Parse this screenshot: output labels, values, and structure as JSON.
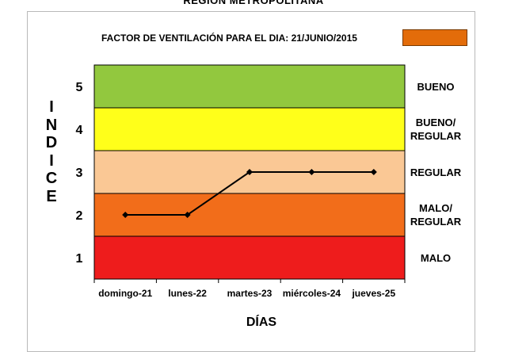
{
  "header": {
    "region_title": "REGION METROPOLITANA",
    "factor_label": "FACTOR DE VENTILACIÓN PARA EL DIA:  21/JUNIO/2015",
    "factor_color": "#E36C0A"
  },
  "chart_data": {
    "type": "line",
    "categories": [
      "domingo-21",
      "lunes-22",
      "martes-23",
      "miércoles-24",
      "jueves-25"
    ],
    "values": [
      2,
      2,
      3,
      3,
      3
    ],
    "xlabel": "DÍAS",
    "ylabel": "INDICE",
    "ylim": [
      0.5,
      5.5
    ],
    "yticks": [
      1,
      2,
      3,
      4,
      5
    ],
    "grid": false,
    "line_color": "#000000",
    "bands": [
      {
        "label": "BUENO",
        "from": 4.5,
        "to": 5.5,
        "color": "#92C83E"
      },
      {
        "label": "BUENO/ REGULAR",
        "from": 3.5,
        "to": 4.5,
        "color": "#FFFF1A"
      },
      {
        "label": "REGULAR",
        "from": 2.5,
        "to": 3.5,
        "color": "#FAC895"
      },
      {
        "label": "MALO/ REGULAR",
        "from": 1.5,
        "to": 2.5,
        "color": "#F26D1A"
      },
      {
        "label": "MALO",
        "from": 0.5,
        "to": 1.5,
        "color": "#EE1C1C"
      }
    ]
  }
}
